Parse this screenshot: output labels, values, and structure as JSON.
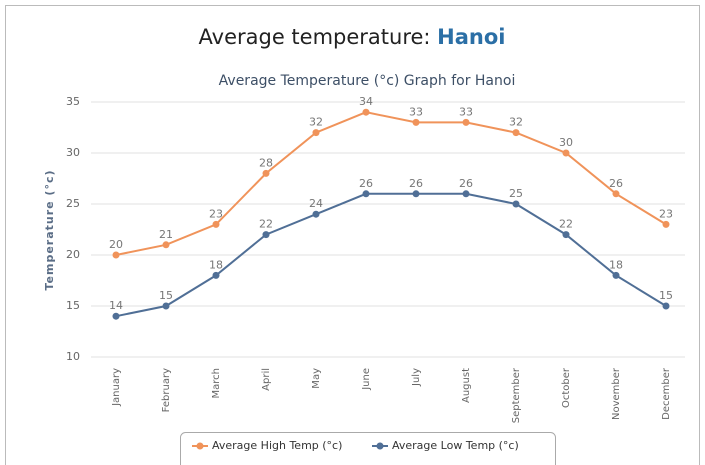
{
  "page_title": {
    "text": "Average temperature:",
    "city": "Hanoi"
  },
  "chart_data": {
    "type": "line",
    "title": "Average Temperature (°c) Graph for Hanoi",
    "y_label": "Temperature (°c)",
    "categories": [
      "January",
      "February",
      "March",
      "April",
      "May",
      "June",
      "July",
      "August",
      "September",
      "October",
      "November",
      "December"
    ],
    "series": [
      {
        "name": "Average High Temp (°c)",
        "color": "#f0935a",
        "values": [
          20,
          21,
          23,
          28,
          32,
          34,
          33,
          33,
          32,
          30,
          26,
          23
        ]
      },
      {
        "name": "Average Low Temp (°c)",
        "color": "#506f96",
        "values": [
          14,
          15,
          18,
          22,
          24,
          26,
          26,
          26,
          25,
          22,
          18,
          15
        ]
      }
    ],
    "ylim": [
      10,
      35
    ],
    "yticks": [
      10,
      15,
      20,
      25,
      30,
      35
    ],
    "grid": true,
    "legend": "bottom"
  }
}
